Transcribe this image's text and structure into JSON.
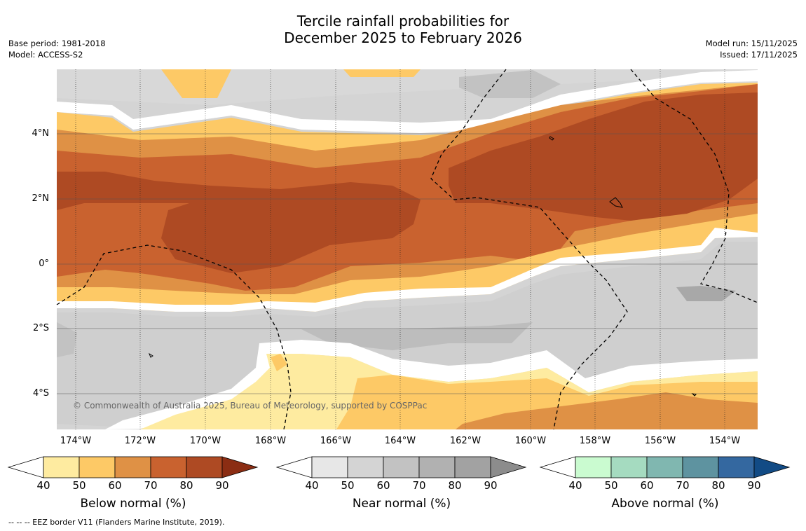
{
  "title": {
    "line1": "Tercile rainfall probabilities for",
    "line2": "December 2025 to February 2026"
  },
  "meta_left": {
    "base_period": "Base period: 1981-2018",
    "model": "Model: ACCESS-S2"
  },
  "meta_right": {
    "model_run": "Model run: 15/11/2025",
    "issued": "Issued: 17/11/2025"
  },
  "copyright": "© Commonwealth of Australia 2025, Bureau of Meteorology, supported by COSPPac",
  "lat_labels": [
    "4°N",
    "2°N",
    "0°",
    "2°S",
    "4°S"
  ],
  "lon_labels": [
    "174°W",
    "172°W",
    "170°W",
    "168°W",
    "166°W",
    "164°W",
    "162°W",
    "160°W",
    "158°W",
    "156°W",
    "154°W"
  ],
  "colorbars": [
    {
      "name": "below",
      "label": "Below normal (%)",
      "ticks": [
        "40",
        "50",
        "60",
        "70",
        "80",
        "90"
      ],
      "colors": [
        "#ffffff",
        "#feeba0",
        "#fdc966",
        "#df9145",
        "#c9622f",
        "#ae4a23",
        "#8b2d13"
      ]
    },
    {
      "name": "near",
      "label": "Near normal (%)",
      "ticks": [
        "40",
        "50",
        "60",
        "70",
        "80",
        "90"
      ],
      "colors": [
        "#ffffff",
        "#e7e7e7",
        "#d4d4d4",
        "#c2c2c2",
        "#b1b1b1",
        "#a2a2a2",
        "#8c8c8c"
      ]
    },
    {
      "name": "above",
      "label": "Above normal (%)",
      "ticks": [
        "40",
        "50",
        "60",
        "70",
        "80",
        "90"
      ],
      "colors": [
        "#ffffff",
        "#cafbd0",
        "#a5dbc0",
        "#80b7b0",
        "#5e93a0",
        "#3468a0",
        "#124b85"
      ]
    }
  ],
  "footnote": "--  --  -- EEZ border V11 (Flanders Marine Institute, 2019)."
}
